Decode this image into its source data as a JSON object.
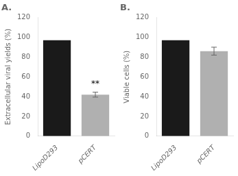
{
  "chart_data": [
    {
      "type": "bar",
      "title": "A.",
      "categories": [
        "LipoD293",
        "pCERT"
      ],
      "values": [
        97,
        42
      ],
      "errors": [
        0,
        2.5
      ],
      "colors": [
        "#1a1a1a",
        "#b0b0b0"
      ],
      "ylabel": "Extracellular viral yields (%)",
      "ylim": [
        0,
        120
      ],
      "yticks": [
        0,
        20,
        40,
        60,
        80,
        100,
        120
      ],
      "grid": false,
      "annotations": [
        {
          "text": "**",
          "category": "pCERT",
          "y": 48.5
        }
      ]
    },
    {
      "type": "bar",
      "title": "B.",
      "categories": [
        "LipoD293",
        "pCERT"
      ],
      "values": [
        97,
        86
      ],
      "errors": [
        0,
        4
      ],
      "colors": [
        "#1a1a1a",
        "#b0b0b0"
      ],
      "ylabel": "Viable cells (%)",
      "ylim": [
        0,
        120
      ],
      "yticks": [
        0,
        20,
        40,
        60,
        80,
        100,
        120
      ],
      "grid": false
    }
  ]
}
